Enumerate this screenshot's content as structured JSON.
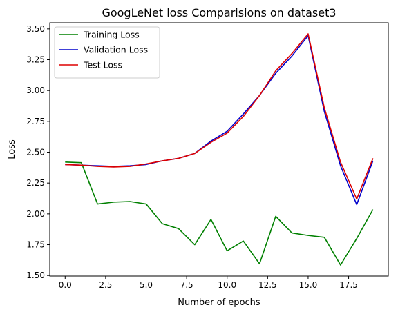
{
  "chart_data": {
    "type": "line",
    "title": "GoogLeNet loss Comparisions on dataset3",
    "xlabel": "Number of epochs",
    "ylabel": "Loss",
    "xlim": [
      -0.95,
      19.95
    ],
    "ylim": [
      1.4955,
      3.5495
    ],
    "x": [
      0,
      1,
      2,
      3,
      4,
      5,
      6,
      7,
      8,
      9,
      10,
      11,
      12,
      13,
      14,
      15,
      16,
      17,
      18,
      19
    ],
    "xticks": [
      0.0,
      2.5,
      5.0,
      7.5,
      10.0,
      12.5,
      15.0,
      17.5
    ],
    "xtick_labels": [
      "0.0",
      "2.5",
      "5.0",
      "7.5",
      "10.0",
      "12.5",
      "15.0",
      "17.5"
    ],
    "yticks": [
      1.5,
      1.75,
      2.0,
      2.25,
      2.5,
      2.75,
      3.0,
      3.25,
      3.5
    ],
    "ytick_labels": [
      "1.50",
      "1.75",
      "2.00",
      "2.25",
      "2.50",
      "2.75",
      "3.00",
      "3.25",
      "3.50"
    ],
    "grid": false,
    "legend_position": "top-left",
    "series": [
      {
        "name": "Training Loss",
        "color": "#008000",
        "values": [
          2.42,
          2.415,
          2.08,
          2.095,
          2.1,
          2.08,
          1.92,
          1.88,
          1.75,
          1.955,
          1.7,
          1.78,
          1.595,
          1.98,
          1.845,
          1.825,
          1.81,
          1.585,
          1.8,
          2.035
        ]
      },
      {
        "name": "Validation Loss",
        "color": "#0000cc",
        "values": [
          2.4,
          2.395,
          2.39,
          2.385,
          2.39,
          2.4,
          2.43,
          2.45,
          2.49,
          2.59,
          2.67,
          2.81,
          2.96,
          3.14,
          3.28,
          3.445,
          2.83,
          2.39,
          2.075,
          2.43
        ]
      },
      {
        "name": "Test Loss",
        "color": "#dd0000",
        "values": [
          2.4,
          2.395,
          2.385,
          2.38,
          2.385,
          2.405,
          2.43,
          2.45,
          2.49,
          2.58,
          2.655,
          2.79,
          2.96,
          3.16,
          3.3,
          3.46,
          2.86,
          2.42,
          2.12,
          2.45
        ]
      }
    ]
  }
}
